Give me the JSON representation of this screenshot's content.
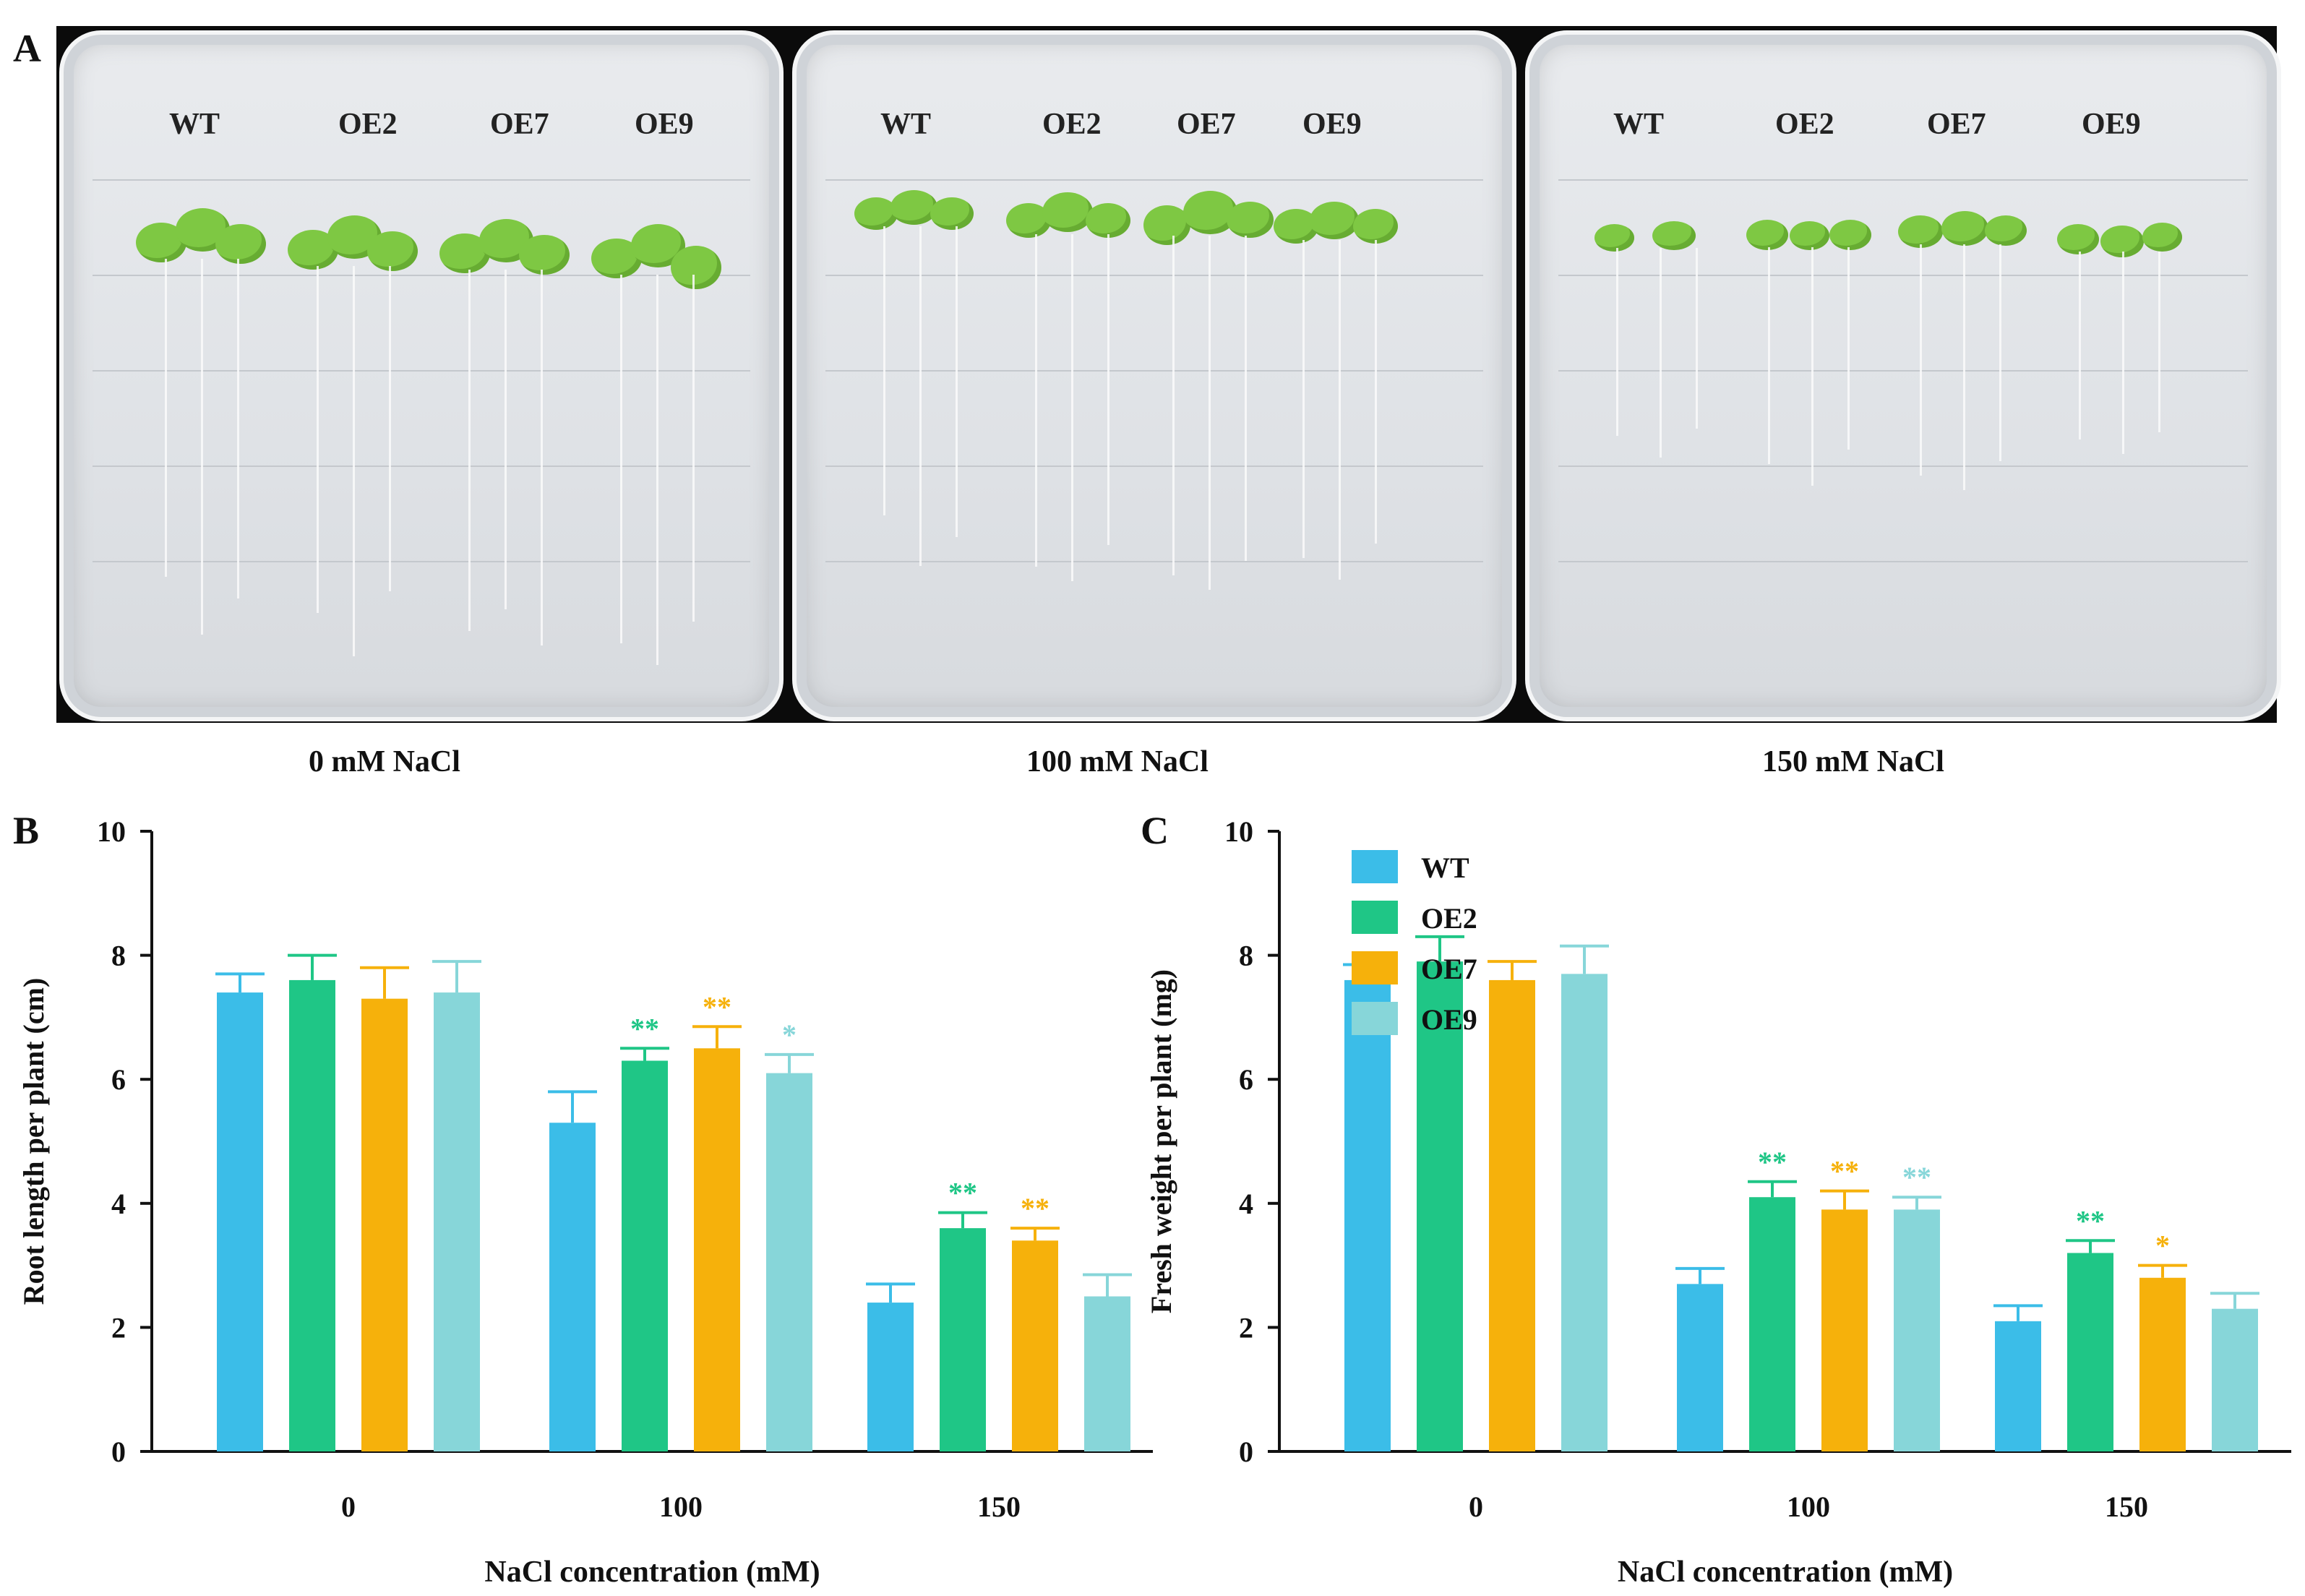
{
  "panel_labels": {
    "a": "A",
    "b": "B",
    "c": "C"
  },
  "plates": [
    {
      "condition": "0 mM NaCl",
      "lines": [
        "WT",
        "OE2",
        "OE7",
        "OE9"
      ]
    },
    {
      "condition": "100 mM NaCl",
      "lines": [
        "WT",
        "OE2",
        "OE7",
        "OE9"
      ]
    },
    {
      "condition": "150 mM NaCl",
      "lines": [
        "WT",
        "OE2",
        "OE7",
        "OE9"
      ]
    }
  ],
  "colors": {
    "WT": "#3bbde8",
    "OE2": "#1fc686",
    "OE7": "#f6b10b",
    "OE9": "#87d6d9"
  },
  "chart_data": [
    {
      "type": "bar",
      "title": "",
      "xlabel": "NaCl concentration (mM)",
      "ylabel": "Root length per plant (cm)",
      "ylim": [
        0,
        10
      ],
      "yticks": [
        "0",
        "2",
        "4",
        "6",
        "8",
        "10"
      ],
      "categories": [
        "0",
        "100",
        "150"
      ],
      "series": [
        {
          "name": "WT",
          "values": [
            7.4,
            5.3,
            2.4
          ],
          "errors": [
            0.3,
            0.5,
            0.3
          ],
          "sig": [
            "",
            "",
            ""
          ]
        },
        {
          "name": "OE2",
          "values": [
            7.6,
            6.3,
            3.6
          ],
          "errors": [
            0.4,
            0.2,
            0.25
          ],
          "sig": [
            "",
            "**",
            "**"
          ]
        },
        {
          "name": "OE7",
          "values": [
            7.3,
            6.5,
            3.4
          ],
          "errors": [
            0.5,
            0.35,
            0.2
          ],
          "sig": [
            "",
            "**",
            "**"
          ]
        },
        {
          "name": "OE9",
          "values": [
            7.4,
            6.1,
            2.5
          ],
          "errors": [
            0.5,
            0.3,
            0.35
          ],
          "sig": [
            "",
            "*",
            ""
          ]
        }
      ]
    },
    {
      "type": "bar",
      "title": "",
      "xlabel": "NaCl concentration (mM)",
      "ylabel": "Fresh weight  per plant (mg)",
      "ylim": [
        0,
        10
      ],
      "yticks": [
        "0",
        "2",
        "4",
        "6",
        "8",
        "10"
      ],
      "categories": [
        "0",
        "100",
        "150"
      ],
      "legend": [
        "WT",
        "OE2",
        "OE7",
        "OE9"
      ],
      "series": [
        {
          "name": "WT",
          "values": [
            7.6,
            2.7,
            2.1
          ],
          "errors": [
            0.25,
            0.25,
            0.25
          ],
          "sig": [
            "",
            "",
            ""
          ]
        },
        {
          "name": "OE2",
          "values": [
            7.9,
            4.1,
            3.2
          ],
          "errors": [
            0.4,
            0.25,
            0.2
          ],
          "sig": [
            "",
            "**",
            "**"
          ]
        },
        {
          "name": "OE7",
          "values": [
            7.6,
            3.9,
            2.8
          ],
          "errors": [
            0.3,
            0.3,
            0.2
          ],
          "sig": [
            "",
            "**",
            "*"
          ]
        },
        {
          "name": "OE9",
          "values": [
            7.7,
            3.9,
            2.3
          ],
          "errors": [
            0.45,
            0.2,
            0.25
          ],
          "sig": [
            "",
            "**",
            ""
          ]
        }
      ]
    }
  ]
}
